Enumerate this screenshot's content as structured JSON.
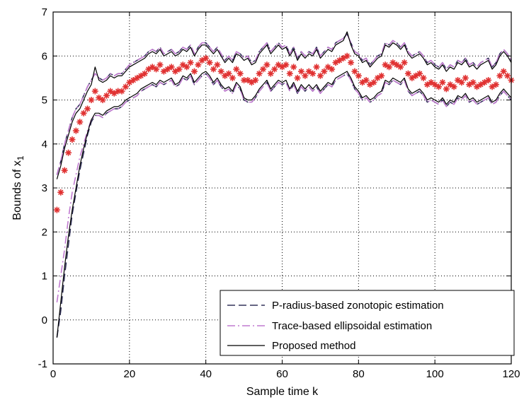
{
  "chart_data": {
    "type": "line",
    "title": "",
    "xlabel": "Sample time k",
    "ylabel": "Bounds of x",
    "ylabel_subscript": "1",
    "xlim": [
      0,
      120
    ],
    "ylim": [
      -1,
      7
    ],
    "xticks": [
      "0",
      "20",
      "40",
      "60",
      "80",
      "100",
      "120"
    ],
    "yticks": [
      "-1",
      "0",
      "1",
      "2",
      "3",
      "4",
      "5",
      "6",
      "7"
    ],
    "grid": true,
    "legend_position": "bottom-right",
    "x": [
      1,
      2,
      3,
      4,
      5,
      6,
      7,
      8,
      9,
      10,
      11,
      12,
      13,
      14,
      15,
      16,
      17,
      18,
      19,
      20,
      21,
      22,
      23,
      24,
      25,
      26,
      27,
      28,
      29,
      30,
      31,
      32,
      33,
      34,
      35,
      36,
      37,
      38,
      39,
      40,
      41,
      42,
      43,
      44,
      45,
      46,
      47,
      48,
      49,
      50,
      51,
      52,
      53,
      54,
      55,
      56,
      57,
      58,
      59,
      60,
      61,
      62,
      63,
      64,
      65,
      66,
      67,
      68,
      69,
      70,
      71,
      72,
      73,
      74,
      75,
      76,
      77,
      78,
      79,
      80,
      81,
      82,
      83,
      84,
      85,
      86,
      87,
      88,
      89,
      90,
      91,
      92,
      93,
      94,
      95,
      96,
      97,
      98,
      99,
      100,
      101,
      102,
      103,
      104,
      105,
      106,
      107,
      108,
      109,
      110,
      111,
      112,
      113,
      114,
      115,
      116,
      117,
      118,
      119,
      120
    ],
    "series": [
      {
        "name": "P-radius-based zonotopic estimation",
        "style": "dashed",
        "color": "#33335a",
        "upper": [
          3.3,
          3.6,
          4.0,
          4.3,
          4.6,
          4.8,
          4.9,
          5.1,
          5.3,
          5.45,
          5.6,
          5.5,
          5.45,
          5.5,
          5.6,
          5.55,
          5.6,
          5.6,
          5.7,
          5.8,
          5.85,
          5.9,
          5.95,
          6.0,
          6.1,
          6.15,
          6.1,
          6.2,
          6.05,
          6.1,
          6.15,
          6.05,
          6.1,
          6.2,
          6.15,
          6.25,
          6.05,
          6.2,
          6.3,
          6.3,
          6.2,
          6.1,
          6.2,
          6.05,
          5.9,
          6.0,
          5.9,
          6.1,
          6.05,
          5.95,
          6.0,
          5.85,
          5.9,
          6.1,
          6.2,
          6.3,
          6.1,
          6.2,
          6.3,
          6.2,
          6.25,
          6.05,
          6.2,
          5.95,
          6.1,
          6.0,
          6.1,
          6.05,
          6.2,
          6.0,
          6.1,
          6.2,
          6.15,
          6.3,
          6.35,
          6.4,
          6.5,
          6.3,
          6.1,
          6.05,
          5.9,
          5.95,
          5.8,
          5.9,
          6.0,
          6.05,
          6.3,
          6.25,
          6.35,
          6.3,
          6.2,
          6.3,
          6.1,
          6.0,
          6.05,
          6.1,
          6.0,
          5.85,
          5.9,
          5.8,
          5.75,
          5.85,
          5.7,
          5.8,
          5.75,
          5.9,
          5.85,
          5.95,
          5.8,
          5.85,
          5.75,
          5.85,
          5.9,
          5.95,
          5.75,
          5.85,
          6.05,
          6.15,
          6.05,
          5.9
        ],
        "lower": [
          -0.4,
          0.2,
          1.0,
          1.7,
          2.4,
          2.9,
          3.4,
          3.8,
          4.2,
          4.5,
          4.65,
          4.65,
          4.6,
          4.7,
          4.75,
          4.8,
          4.8,
          4.85,
          4.95,
          5.0,
          5.05,
          5.1,
          5.2,
          5.25,
          5.3,
          5.35,
          5.3,
          5.4,
          5.35,
          5.4,
          5.45,
          5.3,
          5.35,
          5.5,
          5.45,
          5.55,
          5.35,
          5.45,
          5.55,
          5.6,
          5.5,
          5.35,
          5.45,
          5.3,
          5.2,
          5.25,
          5.15,
          5.35,
          5.25,
          5.0,
          4.95,
          4.95,
          5.05,
          5.2,
          5.3,
          5.4,
          5.2,
          5.3,
          5.4,
          5.35,
          5.4,
          5.2,
          5.35,
          5.15,
          5.3,
          5.2,
          5.3,
          5.2,
          5.3,
          5.15,
          5.25,
          5.35,
          5.3,
          5.45,
          5.5,
          5.55,
          5.6,
          5.45,
          5.25,
          5.15,
          5.0,
          5.05,
          4.95,
          5.0,
          5.1,
          5.15,
          5.4,
          5.35,
          5.45,
          5.4,
          5.35,
          5.45,
          5.2,
          5.1,
          5.15,
          5.2,
          5.1,
          4.95,
          5.0,
          4.95,
          4.9,
          5.0,
          4.85,
          4.95,
          4.9,
          5.05,
          5.0,
          5.1,
          4.95,
          5.0,
          4.9,
          4.95,
          5.0,
          5.05,
          4.9,
          4.95,
          5.1,
          5.2,
          5.1,
          5.0
        ]
      },
      {
        "name": "Trace-based ellipsoidal estimation",
        "style": "dash-dot",
        "color": "#c07ad0",
        "upper": [
          3.3,
          3.6,
          4.0,
          4.3,
          4.6,
          4.8,
          4.9,
          5.1,
          5.3,
          5.45,
          5.6,
          5.5,
          5.45,
          5.5,
          5.6,
          5.55,
          5.6,
          5.6,
          5.7,
          5.8,
          5.85,
          5.9,
          5.95,
          6.0,
          6.1,
          6.15,
          6.1,
          6.2,
          6.05,
          6.1,
          6.15,
          6.05,
          6.1,
          6.2,
          6.15,
          6.25,
          6.05,
          6.2,
          6.3,
          6.3,
          6.2,
          6.1,
          6.2,
          6.05,
          5.9,
          6.0,
          5.9,
          6.1,
          6.05,
          5.95,
          6.0,
          5.85,
          5.9,
          6.1,
          6.2,
          6.3,
          6.1,
          6.2,
          6.3,
          6.2,
          6.25,
          6.05,
          6.2,
          5.95,
          6.1,
          6.0,
          6.1,
          6.05,
          6.2,
          6.0,
          6.1,
          6.2,
          6.15,
          6.3,
          6.35,
          6.4,
          6.5,
          6.3,
          6.1,
          6.05,
          5.9,
          5.95,
          5.8,
          5.9,
          6.0,
          6.05,
          6.3,
          6.25,
          6.35,
          6.3,
          6.2,
          6.3,
          6.1,
          6.0,
          6.05,
          6.1,
          6.0,
          5.85,
          5.9,
          5.8,
          5.75,
          5.85,
          5.7,
          5.8,
          5.75,
          5.9,
          5.85,
          5.95,
          5.8,
          5.85,
          5.75,
          5.85,
          5.9,
          5.95,
          5.75,
          5.85,
          6.05,
          6.15,
          6.05,
          5.9
        ],
        "lower": [
          0.4,
          1.0,
          1.6,
          2.3,
          2.9,
          3.3,
          3.7,
          4.0,
          4.3,
          4.55,
          4.65,
          4.65,
          4.6,
          4.7,
          4.75,
          4.8,
          4.8,
          4.85,
          4.95,
          5.0,
          5.05,
          5.1,
          5.2,
          5.25,
          5.3,
          5.35,
          5.3,
          5.4,
          5.35,
          5.4,
          5.45,
          5.3,
          5.35,
          5.5,
          5.45,
          5.55,
          5.35,
          5.45,
          5.55,
          5.6,
          5.5,
          5.35,
          5.45,
          5.3,
          5.2,
          5.25,
          5.15,
          5.35,
          5.25,
          5.0,
          4.95,
          4.95,
          5.05,
          5.2,
          5.3,
          5.4,
          5.2,
          5.3,
          5.4,
          5.35,
          5.4,
          5.2,
          5.35,
          5.15,
          5.3,
          5.2,
          5.3,
          5.2,
          5.3,
          5.15,
          5.25,
          5.35,
          5.3,
          5.45,
          5.5,
          5.55,
          5.6,
          5.45,
          5.25,
          5.15,
          5.0,
          5.05,
          4.95,
          5.0,
          5.1,
          5.15,
          5.4,
          5.35,
          5.45,
          5.4,
          5.35,
          5.45,
          5.2,
          5.1,
          5.15,
          5.2,
          5.1,
          4.95,
          5.0,
          4.95,
          4.9,
          5.0,
          4.85,
          4.95,
          4.9,
          5.05,
          5.0,
          5.1,
          4.95,
          5.0,
          4.9,
          4.95,
          5.0,
          5.05,
          4.9,
          4.95,
          5.1,
          5.2,
          5.1,
          5.0
        ]
      },
      {
        "name": "Proposed method",
        "style": "solid",
        "color": "#000000",
        "upper": [
          3.2,
          3.5,
          3.9,
          4.2,
          4.5,
          4.7,
          4.8,
          5.0,
          5.2,
          5.35,
          5.75,
          5.45,
          5.4,
          5.45,
          5.55,
          5.5,
          5.55,
          5.55,
          5.65,
          5.75,
          5.8,
          5.85,
          5.9,
          5.95,
          6.05,
          6.1,
          6.05,
          6.15,
          6.0,
          6.05,
          6.1,
          6.0,
          6.05,
          6.15,
          6.1,
          6.2,
          6.0,
          6.15,
          6.25,
          6.25,
          6.15,
          6.05,
          6.15,
          6.0,
          5.85,
          5.95,
          5.85,
          6.05,
          6.0,
          5.9,
          5.95,
          5.8,
          5.85,
          6.05,
          6.15,
          6.25,
          6.05,
          6.15,
          6.25,
          6.15,
          6.2,
          6.0,
          6.15,
          5.9,
          6.05,
          5.95,
          6.05,
          6.0,
          6.15,
          5.95,
          6.05,
          6.15,
          6.1,
          6.25,
          6.3,
          6.35,
          6.55,
          6.25,
          6.05,
          6.0,
          5.85,
          5.9,
          5.75,
          5.85,
          5.95,
          6.0,
          6.25,
          6.2,
          6.3,
          6.25,
          6.15,
          6.25,
          6.05,
          5.95,
          6.0,
          6.05,
          5.95,
          5.8,
          5.85,
          5.75,
          5.7,
          5.8,
          5.65,
          5.75,
          5.7,
          5.85,
          5.8,
          5.9,
          5.75,
          5.8,
          5.7,
          5.8,
          5.85,
          5.9,
          5.7,
          5.8,
          6.0,
          6.1,
          6.0,
          5.85
        ],
        "lower": [
          -0.4,
          0.4,
          1.2,
          1.9,
          2.5,
          3.0,
          3.5,
          3.9,
          4.25,
          4.55,
          4.7,
          4.7,
          4.65,
          4.75,
          4.8,
          4.85,
          4.85,
          4.9,
          5.0,
          5.05,
          5.1,
          5.15,
          5.25,
          5.3,
          5.35,
          5.4,
          5.35,
          5.45,
          5.4,
          5.45,
          5.5,
          5.35,
          5.4,
          5.55,
          5.5,
          5.6,
          5.4,
          5.5,
          5.6,
          5.65,
          5.55,
          5.4,
          5.5,
          5.35,
          5.25,
          5.3,
          5.2,
          5.4,
          5.3,
          5.05,
          5.0,
          5.0,
          5.1,
          5.25,
          5.35,
          5.45,
          5.25,
          5.35,
          5.45,
          5.4,
          5.45,
          5.25,
          5.4,
          5.2,
          5.35,
          5.25,
          5.35,
          5.25,
          5.35,
          5.2,
          5.3,
          5.4,
          5.35,
          5.5,
          5.55,
          5.6,
          5.65,
          5.5,
          5.3,
          5.2,
          5.05,
          5.1,
          5.0,
          5.05,
          5.15,
          5.2,
          5.45,
          5.4,
          5.5,
          5.45,
          5.4,
          5.5,
          5.25,
          5.15,
          5.2,
          5.25,
          5.15,
          5.0,
          5.05,
          5.0,
          4.95,
          5.05,
          4.9,
          5.0,
          4.95,
          5.1,
          5.05,
          5.15,
          5.0,
          5.05,
          4.95,
          5.0,
          5.05,
          5.1,
          4.95,
          5.0,
          5.15,
          5.25,
          5.15,
          5.05
        ]
      },
      {
        "name": "",
        "style": "markers",
        "marker": "asterisk",
        "color": "#e03030",
        "values": [
          2.5,
          2.9,
          3.4,
          3.8,
          4.1,
          4.3,
          4.5,
          4.7,
          4.8,
          5.0,
          5.2,
          5.05,
          5.0,
          5.1,
          5.2,
          5.15,
          5.2,
          5.2,
          5.3,
          5.4,
          5.45,
          5.5,
          5.55,
          5.6,
          5.7,
          5.75,
          5.7,
          5.8,
          5.65,
          5.7,
          5.75,
          5.65,
          5.7,
          5.8,
          5.75,
          5.85,
          5.65,
          5.8,
          5.9,
          5.95,
          5.85,
          5.7,
          5.8,
          5.65,
          5.55,
          5.6,
          5.5,
          5.7,
          5.6,
          5.45,
          5.45,
          5.4,
          5.45,
          5.6,
          5.7,
          5.8,
          5.6,
          5.7,
          5.8,
          5.75,
          5.8,
          5.6,
          5.75,
          5.5,
          5.65,
          5.55,
          5.65,
          5.6,
          5.75,
          5.55,
          5.65,
          5.75,
          5.7,
          5.85,
          5.9,
          5.95,
          6.0,
          5.85,
          5.65,
          5.55,
          5.4,
          5.45,
          5.35,
          5.4,
          5.5,
          5.55,
          5.8,
          5.75,
          5.85,
          5.8,
          5.75,
          5.85,
          5.6,
          5.5,
          5.55,
          5.6,
          5.5,
          5.35,
          5.4,
          5.35,
          5.3,
          5.4,
          5.25,
          5.35,
          5.3,
          5.45,
          5.4,
          5.5,
          5.35,
          5.4,
          5.3,
          5.35,
          5.4,
          5.45,
          5.3,
          5.35,
          5.55,
          5.65,
          5.55,
          5.45
        ]
      }
    ],
    "colors": {
      "grid": "#000000",
      "axes": "#000000",
      "background": "#ffffff"
    }
  }
}
